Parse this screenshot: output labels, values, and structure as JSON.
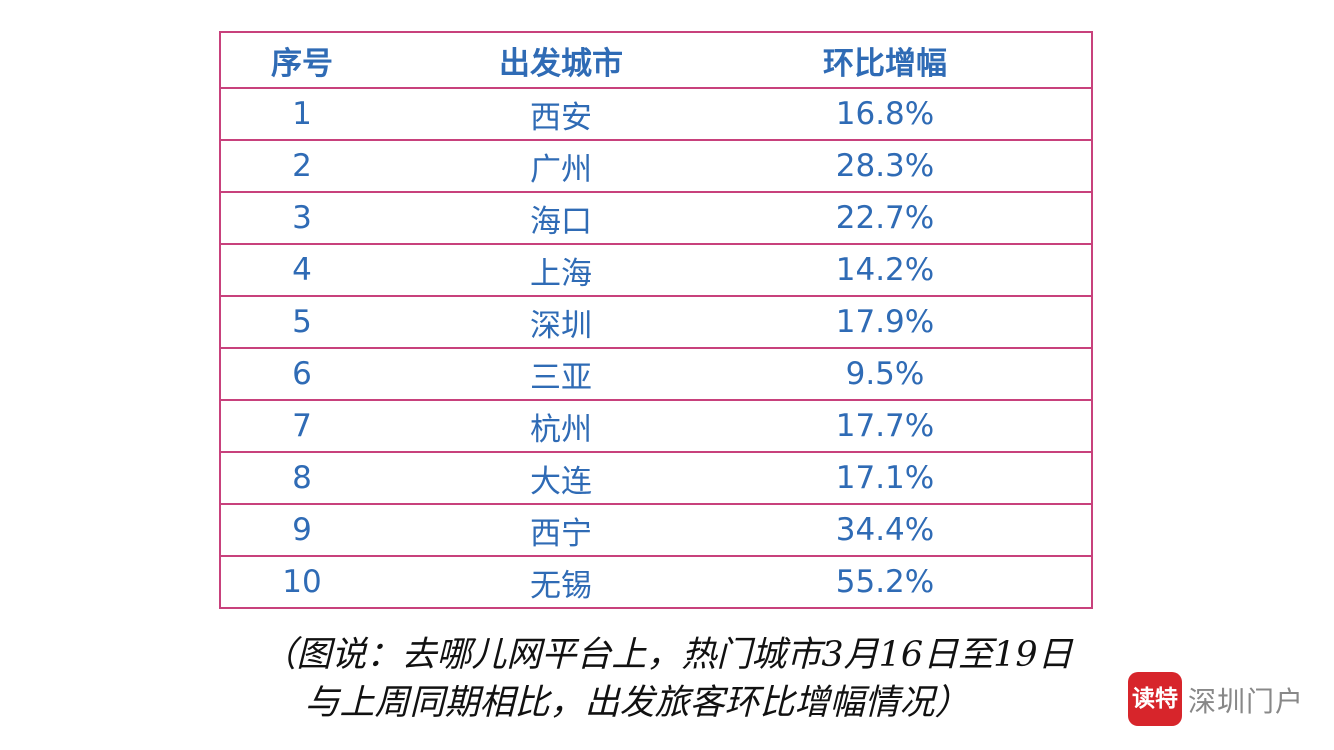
{
  "table": {
    "header": [
      "序号",
      "出发城市",
      "环比增幅"
    ],
    "rows": [
      [
        "1",
        "西安",
        "16.8%"
      ],
      [
        "2",
        "广州",
        "28.3%"
      ],
      [
        "3",
        "海口",
        "22.7%"
      ],
      [
        "4",
        "上海",
        "14.2%"
      ],
      [
        "5",
        "深圳",
        "17.9%"
      ],
      [
        "6",
        "三亚",
        "9.5%"
      ],
      [
        "7",
        "杭州",
        "17.7%"
      ],
      [
        "8",
        "大连",
        "17.1%"
      ],
      [
        "9",
        "西宁",
        "34.4%"
      ],
      [
        "10",
        "无锡",
        "55.2%"
      ]
    ]
  },
  "caption": {
    "lines": [
      "（图说：去哪儿网平台上，热门城市3月16日至19日",
      "与上周同期相比，出发旅客环比增幅情况）"
    ]
  },
  "logo": {
    "badge": "读特",
    "text": "深圳门户"
  }
}
